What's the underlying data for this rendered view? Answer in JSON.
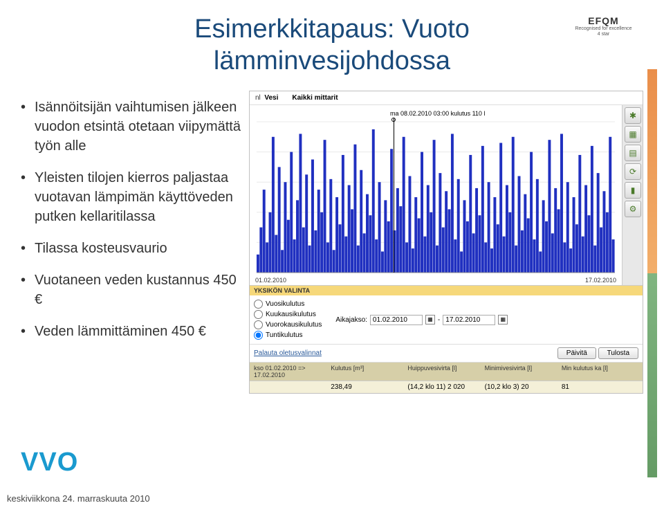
{
  "title": "Esimerkkitapaus: Vuoto lämminvesijohdossa",
  "efqm": {
    "logo": "EFQM",
    "line1": "Recognised for excellence",
    "line2": "4 star"
  },
  "bullets": [
    "Isännöitsijän vaihtumisen jälkeen vuodon etsintä otetaan viipymättä työn alle",
    "Yleisten tilojen kierros paljastaa vuotavan lämpimän käyttöveden putken kellaritilassa",
    "Tilassa kosteusvaurio",
    "Vuotaneen veden kustannus  450 €",
    "Veden lämmittäminen 450 €"
  ],
  "chart": {
    "header_left_label": "nl",
    "header_left_value": "Vesi",
    "header_right_value": "Kaikki mittarit",
    "flag": "ma 08.02.2010 03:00 kulutus 110 l",
    "x_start": "01.02.2010",
    "x_end": "17.02.2010",
    "bars": [
      12,
      30,
      55,
      20,
      40,
      90,
      25,
      70,
      15,
      60,
      35,
      80,
      22,
      48,
      92,
      30,
      65,
      18,
      75,
      28,
      55,
      40,
      88,
      20,
      62,
      15,
      50,
      32,
      78,
      24,
      58,
      42,
      85,
      18,
      68,
      26,
      52,
      38,
      95,
      22,
      60,
      14,
      48,
      34,
      82,
      28,
      56,
      44,
      90,
      20,
      64,
      16,
      50,
      36,
      80,
      24,
      58,
      40,
      88,
      18,
      66,
      30,
      54,
      42,
      92,
      22,
      62,
      14,
      48,
      34,
      78,
      26,
      56,
      38,
      84,
      20,
      60,
      16,
      50,
      32,
      86,
      24,
      58,
      40,
      90,
      18,
      64,
      28,
      52,
      36,
      80,
      22,
      62,
      14,
      48,
      34,
      88,
      26,
      56,
      42,
      92,
      20,
      60,
      16,
      50,
      32,
      78,
      24,
      58,
      38,
      84,
      18,
      66,
      30,
      54,
      40,
      90,
      22
    ]
  },
  "tools": [
    "✱",
    "▦",
    "▤",
    "⟳",
    "▮",
    "⚙"
  ],
  "unit_label": "YKSIKÖN VALINTA",
  "radios": [
    "Vuosikulutus",
    "Kuukausikulutus",
    "Vuorokausikulutus",
    "Tuntikulutus"
  ],
  "radio_selected": 3,
  "period_label": "Aikajakso:",
  "period_from": "01.02.2010",
  "period_to": "17.02.2010",
  "reset_link": "Palauta oletusvalinnat",
  "btn_update": "Päivitä",
  "btn_print": "Tulosta",
  "summary": {
    "head_left": "kso 01.02.2010 => 17.02.2010",
    "cols": [
      "Kulutus [m³]",
      "Huippuvesivirta [l]",
      "Minimivesivirta [l]",
      "Min kulutus ka [l]"
    ],
    "vals": [
      "238,49",
      "(14,2 klo 11) 2 020",
      "(10,2 klo 3) 20",
      "81"
    ]
  },
  "logo": "VVO",
  "footer": "keskiviikkona 24. marraskuuta 2010",
  "colors": {
    "bar": "#2030c0",
    "title": "#1a4a7a"
  }
}
